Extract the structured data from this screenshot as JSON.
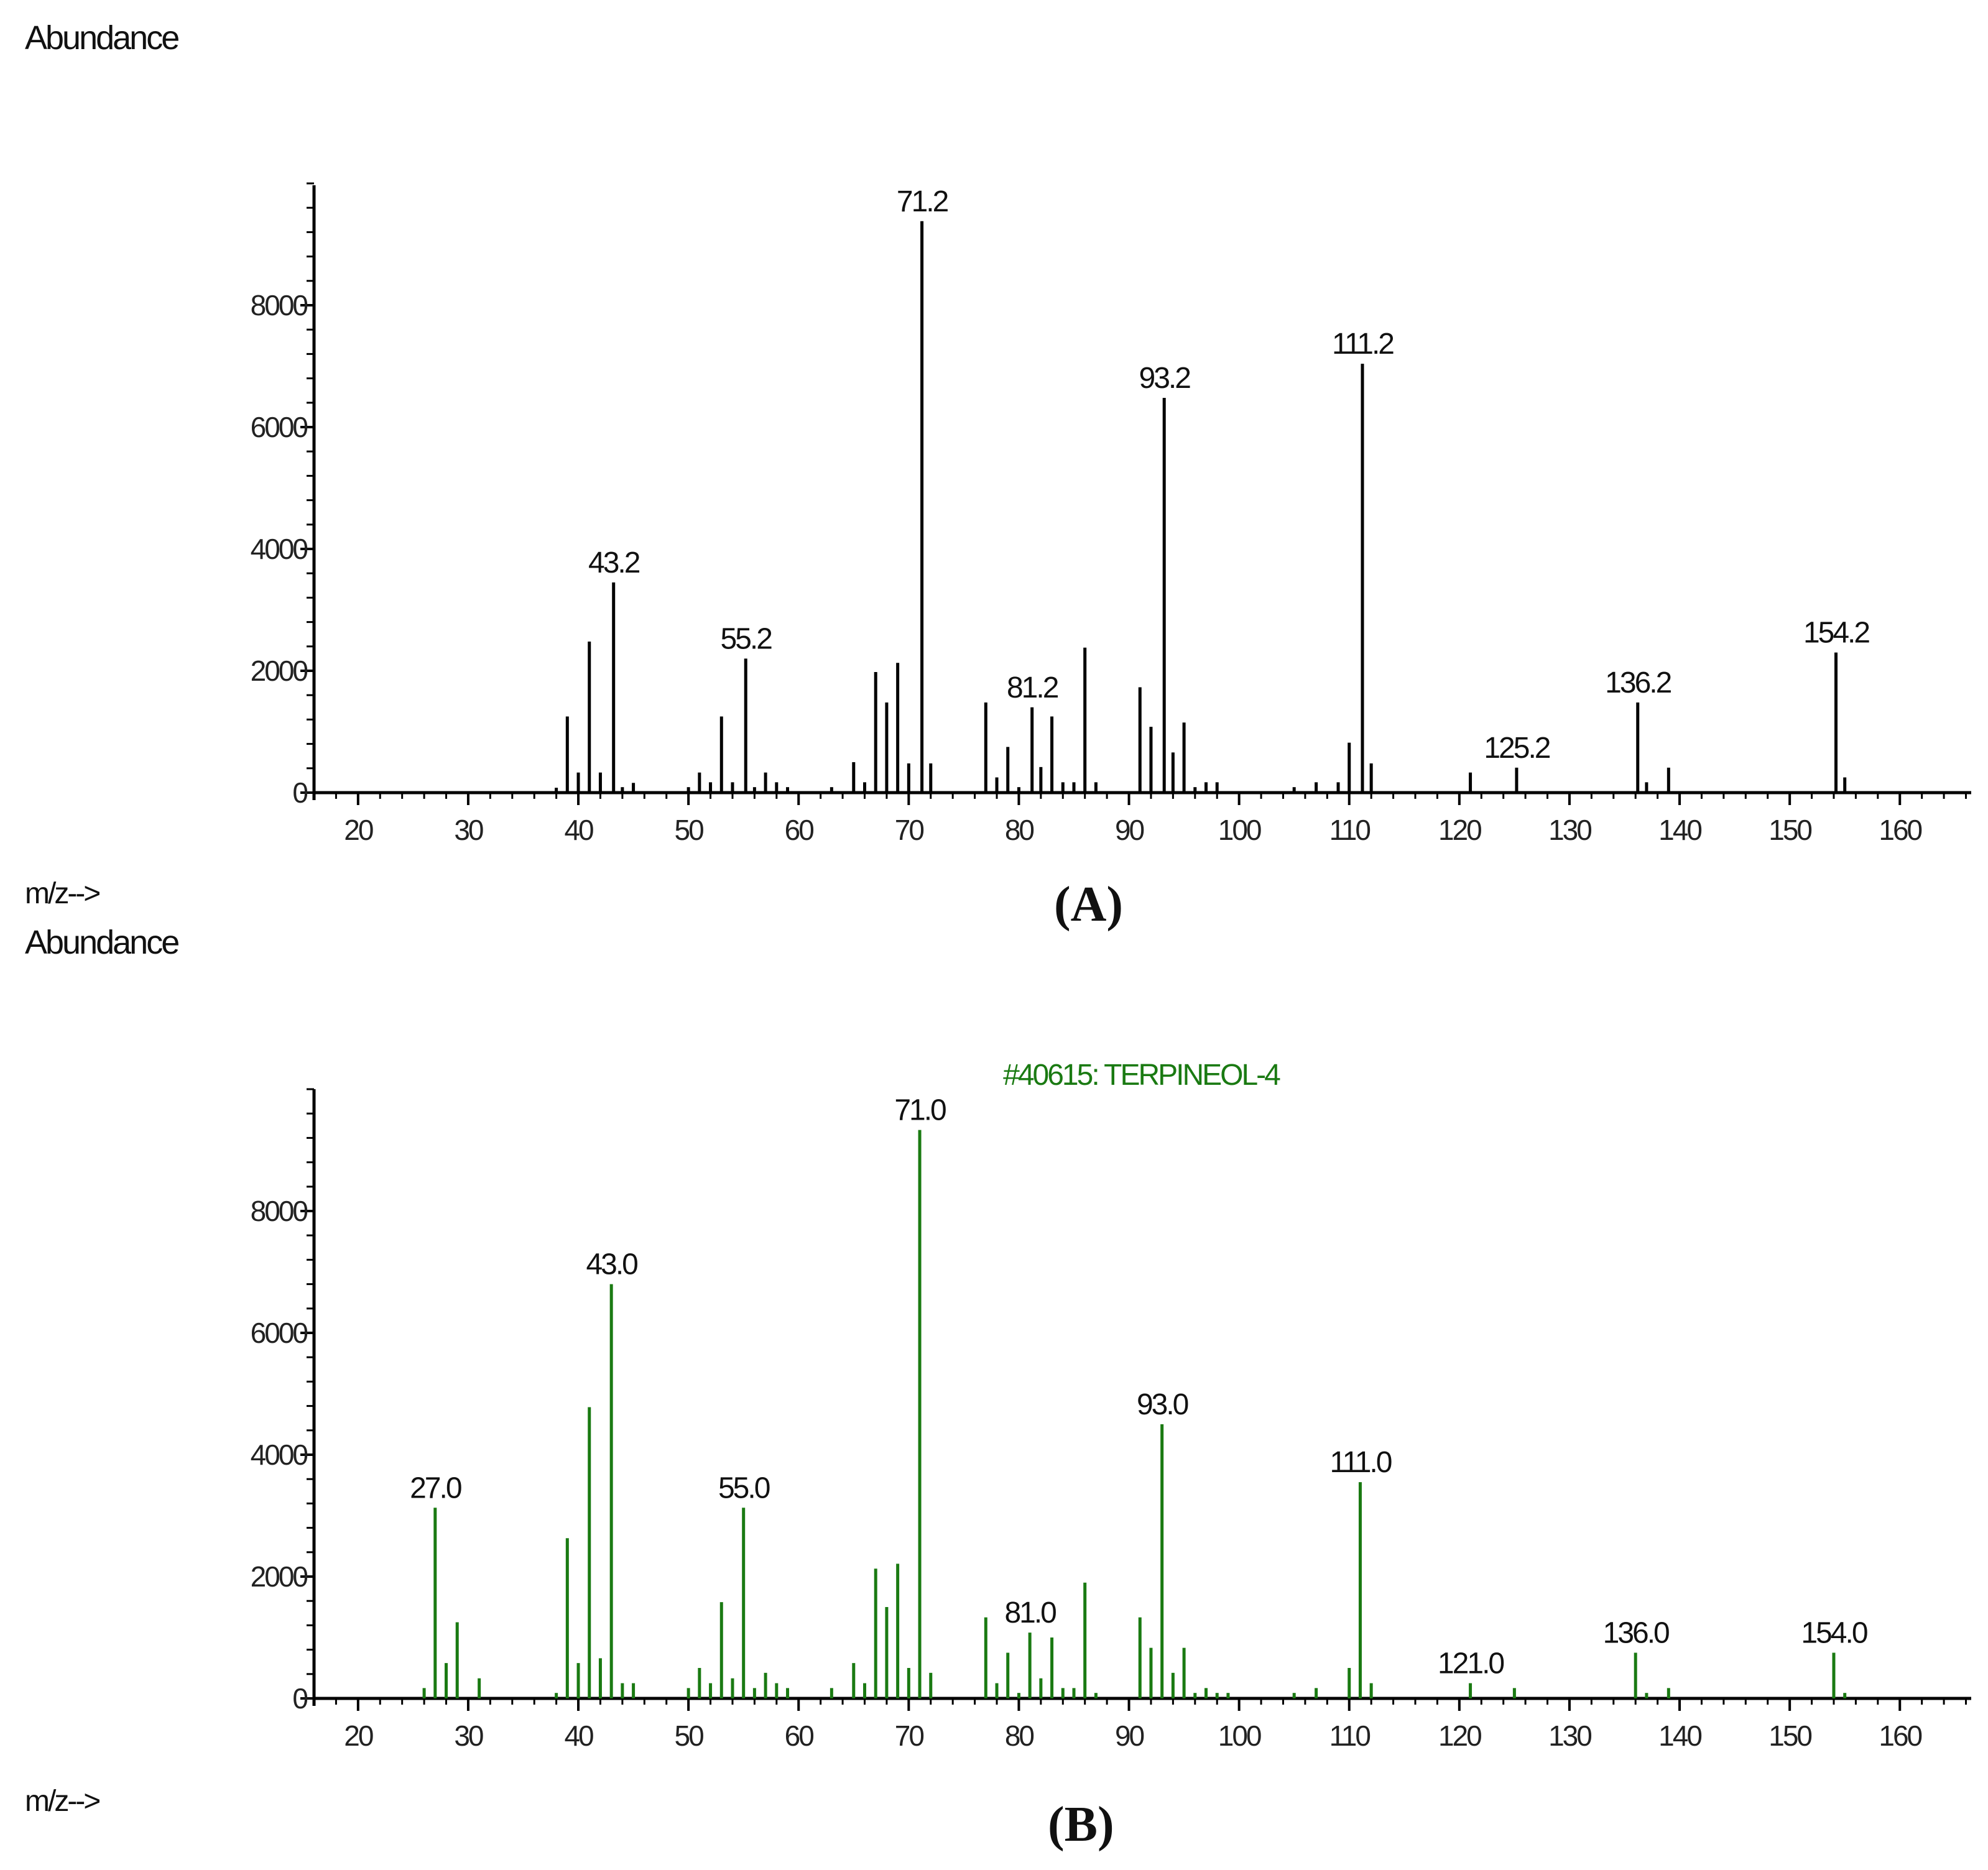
{
  "colors": {
    "spectrum_a": "#000000",
    "spectrum_b": "#1a7a12",
    "axis": "#000000"
  },
  "chart_data": [
    {
      "type": "bar",
      "panel_caption": "(A)",
      "title": "",
      "ylabel": "Abundance",
      "xlabel": "m/z-->",
      "xlim": [
        16,
        166
      ],
      "ylim": [
        0,
        10000
      ],
      "x_ticks": [
        20,
        30,
        40,
        50,
        60,
        70,
        80,
        90,
        100,
        110,
        120,
        130,
        140,
        150,
        160
      ],
      "y_ticks": [
        0,
        2000,
        4000,
        6000,
        8000
      ],
      "grid": false,
      "peaks": [
        {
          "mz": 38,
          "abundance": 80
        },
        {
          "mz": 39,
          "abundance": 1250
        },
        {
          "mz": 40,
          "abundance": 330
        },
        {
          "mz": 41,
          "abundance": 2480
        },
        {
          "mz": 42,
          "abundance": 330
        },
        {
          "mz": 43.2,
          "abundance": 3450,
          "label": "43.2"
        },
        {
          "mz": 44,
          "abundance": 90
        },
        {
          "mz": 45,
          "abundance": 160
        },
        {
          "mz": 50,
          "abundance": 90
        },
        {
          "mz": 51,
          "abundance": 330
        },
        {
          "mz": 52,
          "abundance": 170
        },
        {
          "mz": 53,
          "abundance": 1250
        },
        {
          "mz": 54,
          "abundance": 170
        },
        {
          "mz": 55.2,
          "abundance": 2200,
          "label": "55.2"
        },
        {
          "mz": 56,
          "abundance": 90
        },
        {
          "mz": 57,
          "abundance": 330
        },
        {
          "mz": 58,
          "abundance": 170
        },
        {
          "mz": 59,
          "abundance": 90
        },
        {
          "mz": 63,
          "abundance": 90
        },
        {
          "mz": 65,
          "abundance": 500
        },
        {
          "mz": 66,
          "abundance": 170
        },
        {
          "mz": 67,
          "abundance": 1980
        },
        {
          "mz": 68,
          "abundance": 1480
        },
        {
          "mz": 69,
          "abundance": 2130
        },
        {
          "mz": 70,
          "abundance": 480
        },
        {
          "mz": 71.2,
          "abundance": 9380,
          "label": "71.2"
        },
        {
          "mz": 72,
          "abundance": 480
        },
        {
          "mz": 77,
          "abundance": 1480
        },
        {
          "mz": 78,
          "abundance": 250
        },
        {
          "mz": 79,
          "abundance": 750
        },
        {
          "mz": 80,
          "abundance": 90
        },
        {
          "mz": 81.2,
          "abundance": 1400,
          "label": "81.2"
        },
        {
          "mz": 82,
          "abundance": 420
        },
        {
          "mz": 83,
          "abundance": 1250
        },
        {
          "mz": 84,
          "abundance": 170
        },
        {
          "mz": 85,
          "abundance": 170
        },
        {
          "mz": 86,
          "abundance": 2380
        },
        {
          "mz": 87,
          "abundance": 170
        },
        {
          "mz": 91,
          "abundance": 1730
        },
        {
          "mz": 92,
          "abundance": 1080
        },
        {
          "mz": 93.2,
          "abundance": 6480,
          "label": "93.2"
        },
        {
          "mz": 94,
          "abundance": 660
        },
        {
          "mz": 95,
          "abundance": 1150
        },
        {
          "mz": 96,
          "abundance": 90
        },
        {
          "mz": 97,
          "abundance": 170
        },
        {
          "mz": 98,
          "abundance": 170
        },
        {
          "mz": 105,
          "abundance": 90
        },
        {
          "mz": 107,
          "abundance": 170
        },
        {
          "mz": 109,
          "abundance": 170
        },
        {
          "mz": 110,
          "abundance": 820
        },
        {
          "mz": 111.2,
          "abundance": 7040,
          "label": "111.2"
        },
        {
          "mz": 112,
          "abundance": 480
        },
        {
          "mz": 121,
          "abundance": 330
        },
        {
          "mz": 125.2,
          "abundance": 410,
          "label": "125.2"
        },
        {
          "mz": 136.2,
          "abundance": 1480,
          "label": "136.2"
        },
        {
          "mz": 137,
          "abundance": 170
        },
        {
          "mz": 139,
          "abundance": 410
        },
        {
          "mz": 154.2,
          "abundance": 2300,
          "label": "154.2"
        },
        {
          "mz": 155,
          "abundance": 250
        }
      ]
    },
    {
      "type": "bar",
      "panel_caption": "(B)",
      "title": "#40615: TERPINEOL-4",
      "ylabel": "Abundance",
      "xlabel": "m/z-->",
      "xlim": [
        16,
        166
      ],
      "ylim": [
        0,
        10000
      ],
      "x_ticks": [
        20,
        30,
        40,
        50,
        60,
        70,
        80,
        90,
        100,
        110,
        120,
        130,
        140,
        150,
        160
      ],
      "y_ticks": [
        0,
        2000,
        4000,
        6000,
        8000
      ],
      "grid": false,
      "peaks": [
        {
          "mz": 26,
          "abundance": 170
        },
        {
          "mz": 27.0,
          "abundance": 3130,
          "label": "27.0"
        },
        {
          "mz": 28,
          "abundance": 580
        },
        {
          "mz": 29,
          "abundance": 1250
        },
        {
          "mz": 31,
          "abundance": 330
        },
        {
          "mz": 38,
          "abundance": 90
        },
        {
          "mz": 39,
          "abundance": 2630
        },
        {
          "mz": 40,
          "abundance": 580
        },
        {
          "mz": 41,
          "abundance": 4780
        },
        {
          "mz": 42,
          "abundance": 660
        },
        {
          "mz": 43.0,
          "abundance": 6800,
          "label": "43.0"
        },
        {
          "mz": 44,
          "abundance": 250
        },
        {
          "mz": 45,
          "abundance": 250
        },
        {
          "mz": 50,
          "abundance": 170
        },
        {
          "mz": 51,
          "abundance": 500
        },
        {
          "mz": 52,
          "abundance": 250
        },
        {
          "mz": 53,
          "abundance": 1580
        },
        {
          "mz": 54,
          "abundance": 330
        },
        {
          "mz": 55.0,
          "abundance": 3130,
          "label": "55.0"
        },
        {
          "mz": 56,
          "abundance": 170
        },
        {
          "mz": 57,
          "abundance": 420
        },
        {
          "mz": 58,
          "abundance": 250
        },
        {
          "mz": 59,
          "abundance": 170
        },
        {
          "mz": 63,
          "abundance": 170
        },
        {
          "mz": 65,
          "abundance": 580
        },
        {
          "mz": 66,
          "abundance": 250
        },
        {
          "mz": 67,
          "abundance": 2130
        },
        {
          "mz": 68,
          "abundance": 1500
        },
        {
          "mz": 69,
          "abundance": 2210
        },
        {
          "mz": 70,
          "abundance": 500
        },
        {
          "mz": 71.0,
          "abundance": 9330,
          "label": "71.0"
        },
        {
          "mz": 72,
          "abundance": 420
        },
        {
          "mz": 77,
          "abundance": 1330
        },
        {
          "mz": 78,
          "abundance": 250
        },
        {
          "mz": 79,
          "abundance": 750
        },
        {
          "mz": 80,
          "abundance": 90
        },
        {
          "mz": 81.0,
          "abundance": 1080,
          "label": "81.0"
        },
        {
          "mz": 82,
          "abundance": 330
        },
        {
          "mz": 83,
          "abundance": 1000
        },
        {
          "mz": 84,
          "abundance": 170
        },
        {
          "mz": 85,
          "abundance": 170
        },
        {
          "mz": 86,
          "abundance": 1900
        },
        {
          "mz": 87,
          "abundance": 90
        },
        {
          "mz": 91,
          "abundance": 1330
        },
        {
          "mz": 92,
          "abundance": 830
        },
        {
          "mz": 93.0,
          "abundance": 4500,
          "label": "93.0"
        },
        {
          "mz": 94,
          "abundance": 420
        },
        {
          "mz": 95,
          "abundance": 830
        },
        {
          "mz": 96,
          "abundance": 90
        },
        {
          "mz": 97,
          "abundance": 170
        },
        {
          "mz": 98,
          "abundance": 90
        },
        {
          "mz": 99,
          "abundance": 90
        },
        {
          "mz": 105,
          "abundance": 90
        },
        {
          "mz": 107,
          "abundance": 170
        },
        {
          "mz": 110,
          "abundance": 500
        },
        {
          "mz": 111.0,
          "abundance": 3550,
          "label": "111.0"
        },
        {
          "mz": 112,
          "abundance": 250
        },
        {
          "mz": 121.0,
          "abundance": 250,
          "label": "121.0"
        },
        {
          "mz": 125,
          "abundance": 170
        },
        {
          "mz": 136.0,
          "abundance": 750,
          "label": "136.0"
        },
        {
          "mz": 137,
          "abundance": 90
        },
        {
          "mz": 139,
          "abundance": 170
        },
        {
          "mz": 154.0,
          "abundance": 750,
          "label": "154.0"
        },
        {
          "mz": 155,
          "abundance": 90
        }
      ]
    }
  ]
}
